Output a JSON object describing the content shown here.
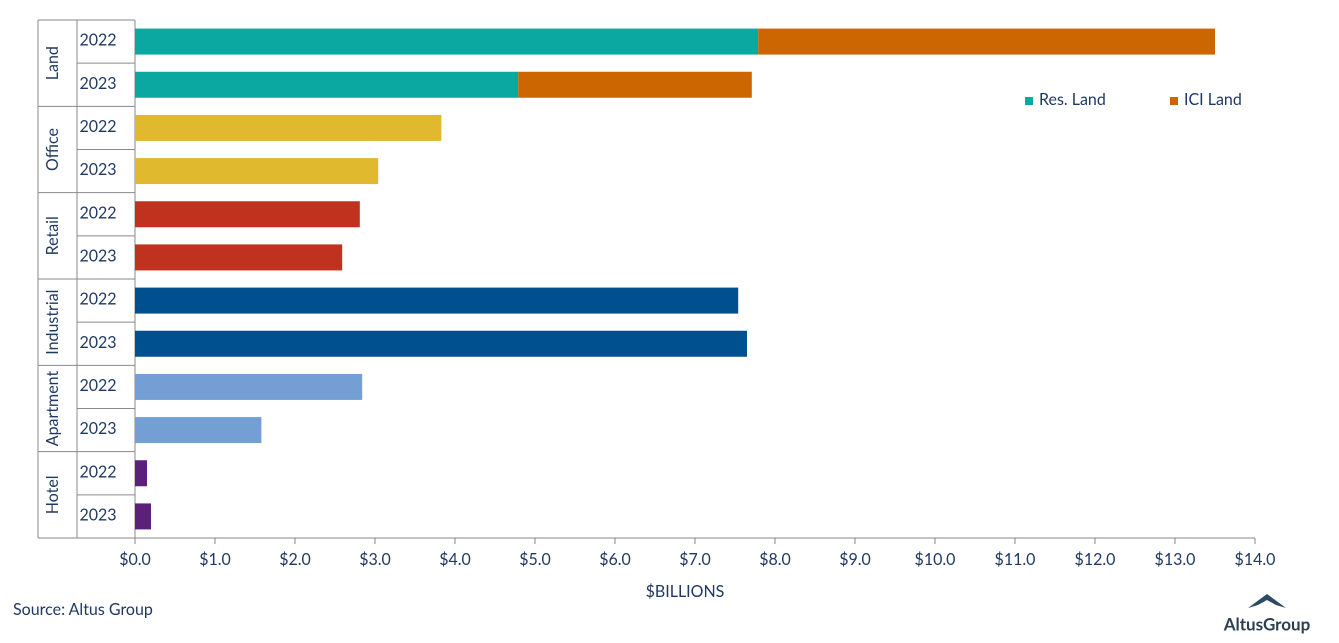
{
  "chart_data": {
    "type": "bar",
    "orientation": "horizontal",
    "stacked": true,
    "x_label": "$BILLIONS",
    "xlim": [
      0,
      14
    ],
    "xticks": [
      {
        "value": 0,
        "label": "$0.0"
      },
      {
        "value": 1,
        "label": "$1.0"
      },
      {
        "value": 2,
        "label": "$2.0"
      },
      {
        "value": 3,
        "label": "$3.0"
      },
      {
        "value": 4,
        "label": "$4.0"
      },
      {
        "value": 5,
        "label": "$5.0"
      },
      {
        "value": 6,
        "label": "$6.0"
      },
      {
        "value": 7,
        "label": "$7.0"
      },
      {
        "value": 8,
        "label": "$8.0"
      },
      {
        "value": 9,
        "label": "$9.0"
      },
      {
        "value": 10,
        "label": "$10.0"
      },
      {
        "value": 11,
        "label": "$11.0"
      },
      {
        "value": 12,
        "label": "$12.0"
      },
      {
        "value": 13,
        "label": "$13.0"
      },
      {
        "value": 14,
        "label": "$14.0"
      }
    ],
    "legend_position": "upper right",
    "groups": [
      {
        "name": "Land",
        "categories": [
          "2022",
          "2023"
        ],
        "series": [
          {
            "name": "Res. Land",
            "color": "#0aa8a0",
            "values": [
              7.79,
              4.79
            ]
          },
          {
            "name": "ICI Land",
            "color": "#cc6600",
            "values": [
              5.71,
              2.92
            ]
          }
        ]
      },
      {
        "name": "Office",
        "categories": [
          "2022",
          "2023"
        ],
        "color": "#e1b92f",
        "values": [
          3.83,
          3.04
        ]
      },
      {
        "name": "Retail",
        "categories": [
          "2022",
          "2023"
        ],
        "color": "#c0311e",
        "values": [
          2.81,
          2.59
        ]
      },
      {
        "name": "Industrial",
        "categories": [
          "2022",
          "2023"
        ],
        "color": "#004f8f",
        "values": [
          7.54,
          7.65
        ]
      },
      {
        "name": "Apartment",
        "categories": [
          "2022",
          "2023"
        ],
        "color": "#739fd4",
        "values": [
          2.84,
          1.58
        ]
      },
      {
        "name": "Hotel",
        "categories": [
          "2022",
          "2023"
        ],
        "color": "#5c1f7c",
        "values": [
          0.15,
          0.2
        ]
      }
    ]
  },
  "source": "Source:  Altus Group",
  "logo": "AltusGroup"
}
